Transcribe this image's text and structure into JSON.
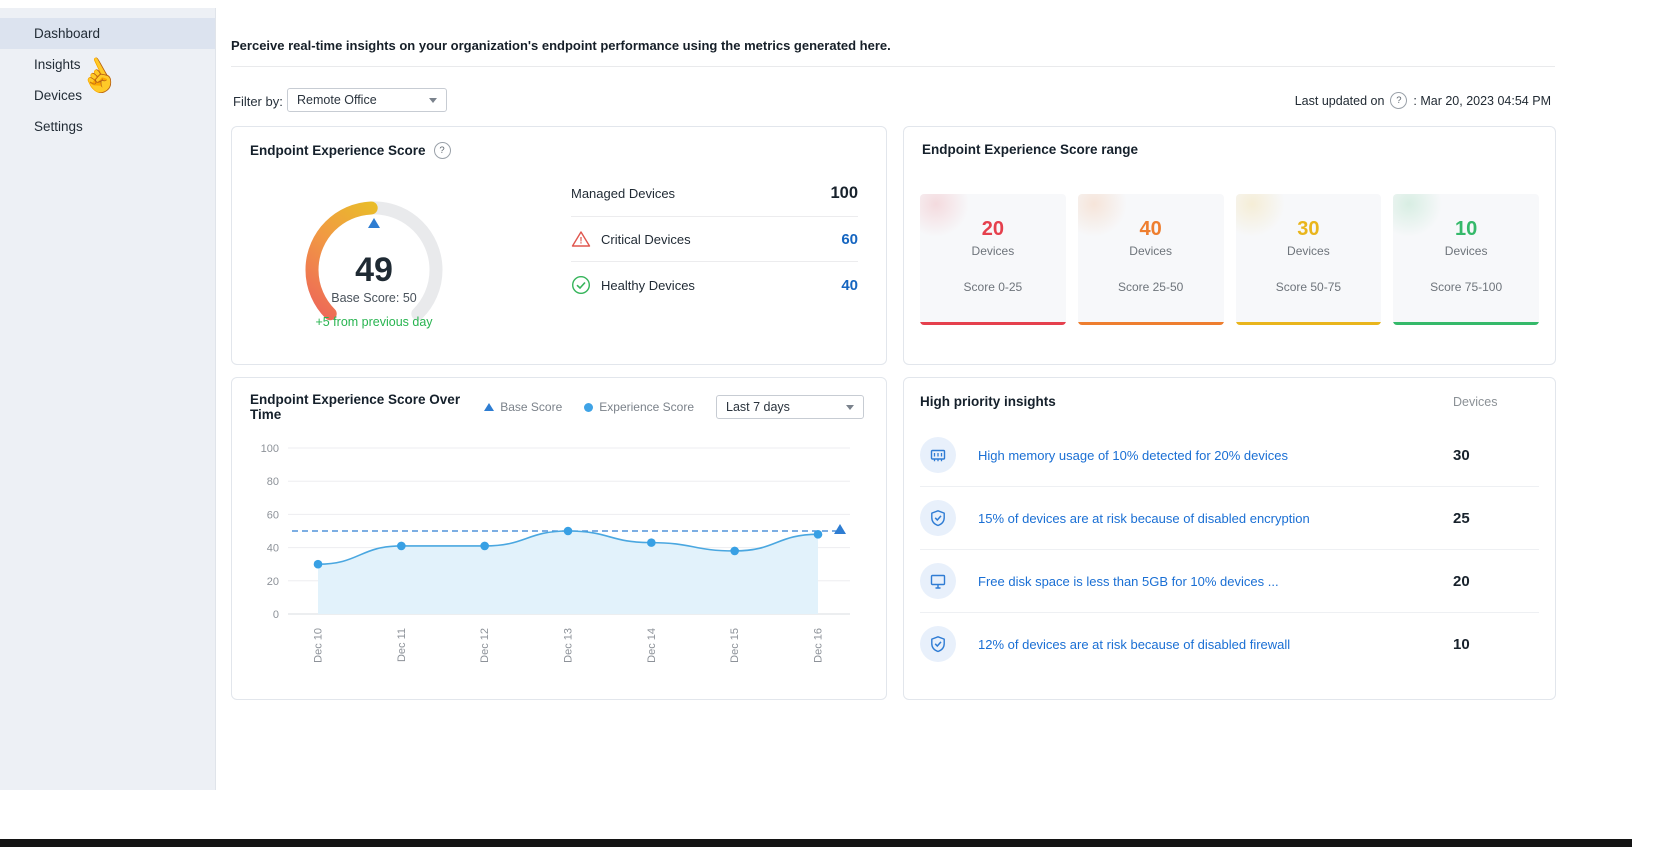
{
  "ui": {
    "help_glyph": "?"
  },
  "cursor": {
    "glyph": "☝"
  },
  "sidebar": {
    "items": [
      {
        "label": "Dashboard",
        "active": true
      },
      {
        "label": "Insights",
        "active": false
      },
      {
        "label": "Devices",
        "active": false
      },
      {
        "label": "Settings",
        "active": false
      }
    ]
  },
  "intro": "Perceive real-time insights on your organization's endpoint performance using the metrics generated here.",
  "filter_bar": {
    "label": "Filter by:",
    "selected_option": "Remote Office",
    "last_updated_label": "Last updated on",
    "last_updated_value": ": Mar 20, 2023 04:54 PM"
  },
  "score_card": {
    "title": "Endpoint Experience Score",
    "score": "49",
    "score_value": 49,
    "base_score_label": "Base Score: 50",
    "delta_label": "+5 from previous day",
    "stats": [
      {
        "label": "Managed Devices",
        "value": "100",
        "icon": "none"
      },
      {
        "label": "Critical Devices",
        "value": "60",
        "icon": "warning-triangle"
      },
      {
        "label": "Healthy Devices",
        "value": "40",
        "icon": "check-circle"
      }
    ]
  },
  "range_card": {
    "title": "Endpoint Experience Score range",
    "buckets": [
      {
        "count": "20",
        "unit": "Devices",
        "range": "Score 0-25",
        "color": "#e5404d"
      },
      {
        "count": "40",
        "unit": "Devices",
        "range": "Score 25-50",
        "color": "#ee7e2f"
      },
      {
        "count": "30",
        "unit": "Devices",
        "range": "Score 50-75",
        "color": "#e9b51c"
      },
      {
        "count": "10",
        "unit": "Devices",
        "range": "Score 75-100",
        "color": "#35b96a"
      }
    ]
  },
  "trend_card": {
    "title": "Endpoint Experience Score Over Time",
    "legend": [
      {
        "label": "Base Score",
        "marker": "triangle"
      },
      {
        "label": "Experience Score",
        "marker": "dot"
      }
    ],
    "period_selected": "Last 7 days",
    "chart_data": {
      "type": "line",
      "x": [
        "Dec 10",
        "Dec 11",
        "Dec 12",
        "Dec 13",
        "Dec 14",
        "Dec 15",
        "Dec 16"
      ],
      "series": [
        {
          "name": "Experience Score",
          "values": [
            30,
            41,
            41,
            50,
            43,
            38,
            48
          ]
        },
        {
          "name": "Base Score",
          "values": [
            50,
            50,
            50,
            50,
            50,
            50,
            50
          ]
        }
      ],
      "ylim": [
        0,
        100
      ],
      "yticks": [
        0,
        20,
        40,
        60,
        80,
        100
      ],
      "grid": true,
      "legend_position": "top",
      "line_color": "#4aa7e0",
      "base_color": "#2e7dd2"
    }
  },
  "insights_card": {
    "title": "High priority insights",
    "column_header": "Devices",
    "rows": [
      {
        "icon": "memory-icon",
        "text": "High memory usage of 10% detected for 20% devices",
        "value": "30"
      },
      {
        "icon": "shield-check-icon",
        "text": "15% of devices are at risk because of disabled encryption",
        "value": "25"
      },
      {
        "icon": "monitor-icon",
        "text": "Free disk space is less than 5GB for 10% devices ...",
        "value": "20"
      },
      {
        "icon": "shield-check-icon",
        "text": "12% of devices are at risk because of disabled firewall",
        "value": "10"
      }
    ]
  },
  "colors": {
    "link_blue": "#1a6fd4",
    "value_blue": "#1565c0",
    "positive_green": "#28b450",
    "critical_red": "#e0564e",
    "healthy_green": "#35b45a",
    "sidebar_bg": "#edf0f5",
    "sidebar_active_bg": "#dce3ef"
  }
}
